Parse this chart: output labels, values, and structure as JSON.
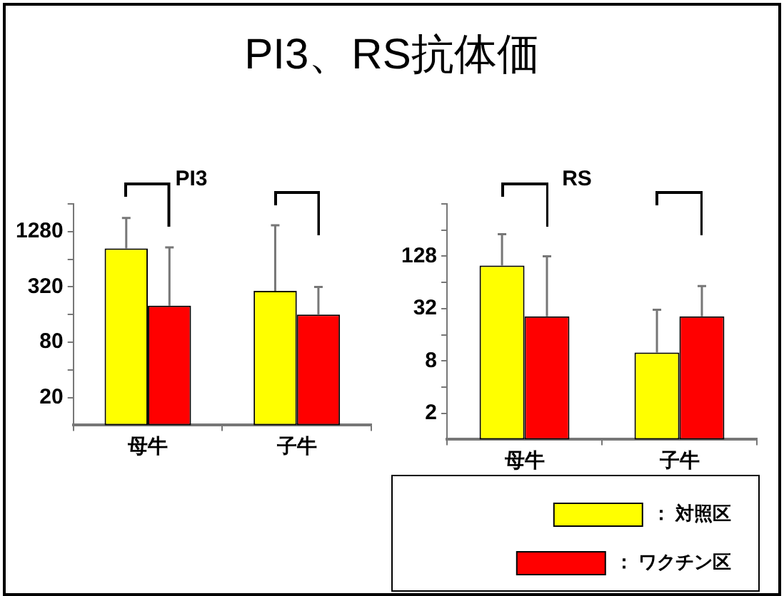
{
  "chart_data": [
    {
      "type": "other",
      "title": "PI3、RS抗体価"
    },
    {
      "type": "bar",
      "title": "PI3",
      "categories": [
        "母牛",
        "子牛"
      ],
      "log": "y",
      "ylim": [
        10,
        2560
      ],
      "yticks": [
        {
          "value": 20,
          "label": "20"
        },
        {
          "value": 40,
          "label": null
        },
        {
          "value": 80,
          "label": "80"
        },
        {
          "value": 160,
          "label": null
        },
        {
          "value": 320,
          "label": "320"
        },
        {
          "value": 640,
          "label": null
        },
        {
          "value": 1280,
          "label": "1280"
        },
        {
          "value": 2560,
          "label": null
        }
      ],
      "grid": false,
      "series": [
        {
          "color": "#ffff00",
          "values": [
            840,
            290
          ],
          "errors": [
            [
              840,
              1800
            ],
            [
              290,
              1500
            ]
          ]
        },
        {
          "color": "#ff0000",
          "values": [
            200,
            160
          ],
          "errors": [
            [
              200,
              860
            ],
            [
              160,
              320
            ]
          ]
        }
      ]
    },
    {
      "type": "bar",
      "title": "RS",
      "categories": [
        "母牛",
        "子牛"
      ],
      "log": "y",
      "ylim": [
        1,
        512
      ],
      "yticks": [
        {
          "value": 2,
          "label": "2"
        },
        {
          "value": 4,
          "label": null
        },
        {
          "value": 8,
          "label": "8"
        },
        {
          "value": 16,
          "label": null
        },
        {
          "value": 32,
          "label": "32"
        },
        {
          "value": 64,
          "label": null
        },
        {
          "value": 128,
          "label": "128"
        },
        {
          "value": 256,
          "label": null
        },
        {
          "value": 512,
          "label": null
        }
      ],
      "grid": false,
      "legend": "bottom right",
      "series": [
        {
          "name": "： 対照区",
          "color": "#ffff00",
          "values": [
            100,
            10
          ],
          "errors": [
            [
              100,
              230
            ],
            [
              10,
              31
            ]
          ]
        },
        {
          "name": "： ワクチン区",
          "color": "#ff0000",
          "values": [
            26,
            26
          ],
          "errors": [
            [
              26,
              128
            ],
            [
              26,
              58
            ]
          ]
        }
      ]
    }
  ]
}
